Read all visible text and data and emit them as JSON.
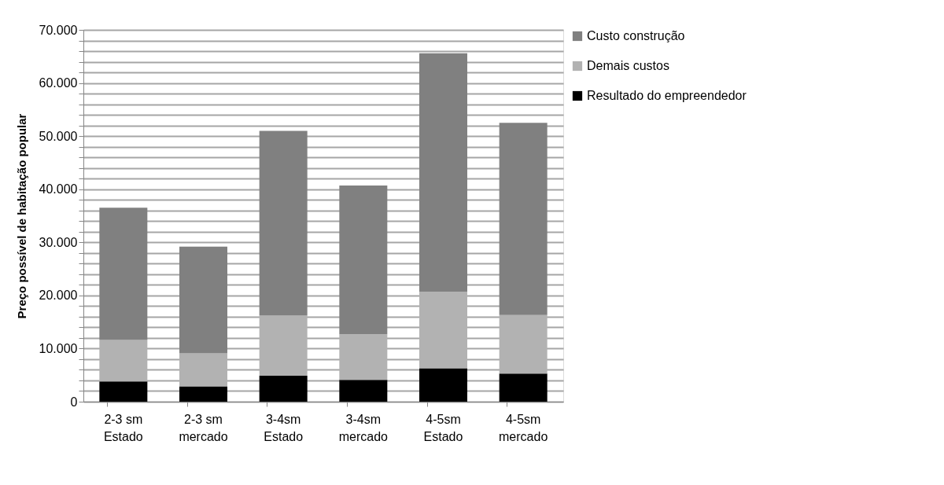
{
  "chart_data": {
    "type": "bar",
    "stacked": true,
    "ylabel": "Preço possível de habitação popular",
    "categories": [
      "2-3 sm Estado",
      "2-3 sm mercado",
      "3-4sm Estado",
      "3-4sm mercado",
      "4-5sm Estado",
      "4-5sm mercado"
    ],
    "series": [
      {
        "name": "Resultado do empreendedor",
        "color": "#000000",
        "values": [
          3800,
          2900,
          4900,
          4100,
          6300,
          5300
        ]
      },
      {
        "name": "Demais custos",
        "color": "#b2b2b2",
        "values": [
          7800,
          6200,
          11300,
          8600,
          14400,
          11000
        ]
      },
      {
        "name": "Custo construção",
        "color": "#808080",
        "values": [
          24900,
          20100,
          34800,
          28000,
          44900,
          36200
        ]
      }
    ],
    "ylim": [
      0,
      70000
    ],
    "yticks": [
      {
        "value": 0,
        "label": "0"
      },
      {
        "value": 2000,
        "label": null
      },
      {
        "value": 4000,
        "label": null
      },
      {
        "value": 6000,
        "label": null
      },
      {
        "value": 8000,
        "label": null
      },
      {
        "value": 10000,
        "label": "10.000"
      },
      {
        "value": 12000,
        "label": null
      },
      {
        "value": 14000,
        "label": null
      },
      {
        "value": 16000,
        "label": null
      },
      {
        "value": 18000,
        "label": null
      },
      {
        "value": 20000,
        "label": "20.000"
      },
      {
        "value": 22000,
        "label": null
      },
      {
        "value": 24000,
        "label": null
      },
      {
        "value": 26000,
        "label": null
      },
      {
        "value": 28000,
        "label": null
      },
      {
        "value": 30000,
        "label": "30.000"
      },
      {
        "value": 32000,
        "label": null
      },
      {
        "value": 34000,
        "label": null
      },
      {
        "value": 36000,
        "label": null
      },
      {
        "value": 38000,
        "label": null
      },
      {
        "value": 40000,
        "label": "40.000"
      },
      {
        "value": 42000,
        "label": null
      },
      {
        "value": 44000,
        "label": null
      },
      {
        "value": 46000,
        "label": null
      },
      {
        "value": 48000,
        "label": null
      },
      {
        "value": 50000,
        "label": "50.000"
      },
      {
        "value": 52000,
        "label": null
      },
      {
        "value": 54000,
        "label": null
      },
      {
        "value": 56000,
        "label": null
      },
      {
        "value": 58000,
        "label": null
      },
      {
        "value": 60000,
        "label": "60.000"
      },
      {
        "value": 62000,
        "label": null
      },
      {
        "value": 64000,
        "label": null
      },
      {
        "value": 66000,
        "label": null
      },
      {
        "value": 68000,
        "label": null
      },
      {
        "value": 70000,
        "label": "70.000"
      }
    ],
    "grid": "y",
    "legend": "right"
  }
}
